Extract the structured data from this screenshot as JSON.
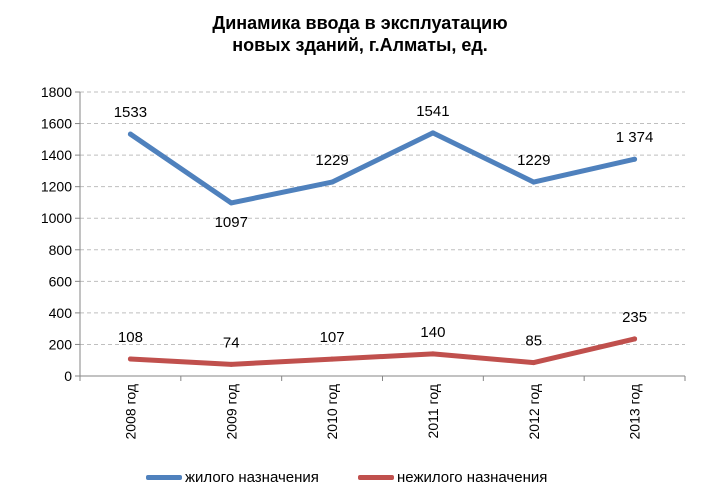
{
  "title": {
    "line1": "Динамика ввода в эксплуатацию",
    "line2": "новых зданий, г.Алматы, ед."
  },
  "chart_data": {
    "type": "line",
    "categories": [
      "2008 год",
      "2009 год",
      "2010 год",
      "2011 год",
      "2012 год",
      "2013 год"
    ],
    "ylim": [
      0,
      1800
    ],
    "yticks": [
      0,
      200,
      400,
      600,
      800,
      1000,
      1200,
      1400,
      1600,
      1800
    ],
    "grid": true,
    "legend_position": "bottom",
    "series": [
      {
        "name": "жилого назначения",
        "color": "#4F81BD",
        "values": [
          1533,
          1097,
          1229,
          1541,
          1229,
          1374
        ],
        "labels": [
          "1533",
          "1097",
          "1229",
          "1541",
          "1229",
          "1 374"
        ]
      },
      {
        "name": "нежилого назначения",
        "color": "#C0504D",
        "values": [
          108,
          74,
          107,
          140,
          85,
          235
        ],
        "labels": [
          "108",
          "74",
          "107",
          "140",
          "85",
          "235"
        ]
      }
    ]
  }
}
